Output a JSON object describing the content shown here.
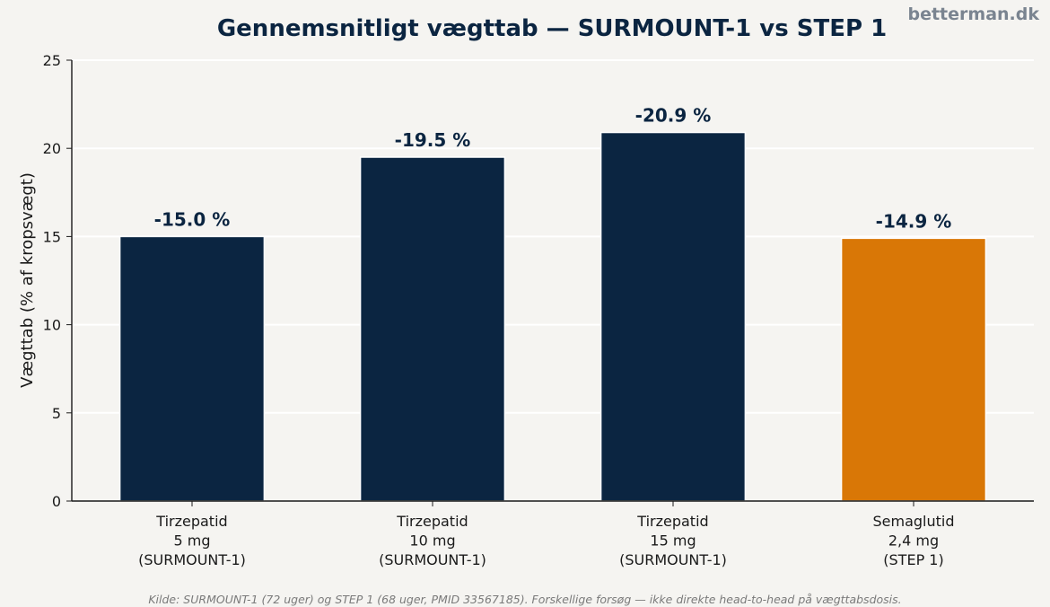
{
  "watermark": "betterman.dk",
  "footnote": "Kilde: SURMOUNT-1 (72 uger) og STEP 1 (68 uger, PMID 33567185). Forskellige forsøg — ikke direkte head-to-head på vægttabsdosis.",
  "colors": {
    "background": "#f5f4f1",
    "navy": "#0b2541",
    "orange": "#d97706",
    "grid": "#ffffff",
    "axis": "#1a1a1a",
    "watermark": "#7a8490",
    "footnote": "#7a7a7a"
  },
  "chart_data": {
    "type": "bar",
    "title": "Gennemsnitligt vægttab — SURMOUNT-1 vs STEP 1",
    "xlabel": "",
    "ylabel": "Vægttab (% af kropsvægt)",
    "ylim": [
      0,
      25
    ],
    "yticks": [
      "0",
      "5",
      "10",
      "15",
      "20",
      "25"
    ],
    "grid": true,
    "categories": [
      [
        "Tirzepatid",
        "5 mg",
        "(SURMOUNT-1)"
      ],
      [
        "Tirzepatid",
        "10 mg",
        "(SURMOUNT-1)"
      ],
      [
        "Tirzepatid",
        "15 mg",
        "(SURMOUNT-1)"
      ],
      [
        "Semaglutid",
        "2,4 mg",
        "(STEP 1)"
      ]
    ],
    "values": [
      15.0,
      19.5,
      20.9,
      14.9
    ],
    "data_labels": [
      "-15.0 %",
      "-19.5 %",
      "-20.9 %",
      "-14.9 %"
    ],
    "bar_colors": [
      "#0b2541",
      "#0b2541",
      "#0b2541",
      "#d97706"
    ]
  }
}
